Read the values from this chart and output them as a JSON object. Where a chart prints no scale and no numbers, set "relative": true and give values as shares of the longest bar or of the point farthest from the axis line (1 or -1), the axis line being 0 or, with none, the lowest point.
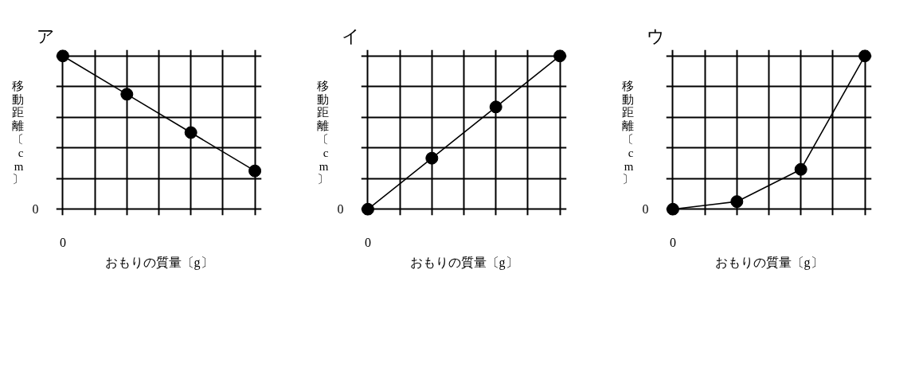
{
  "chart_data": [
    {
      "type": "line",
      "title": "ア",
      "xlabel": "おもりの質量〔g〕",
      "ylabel": "移動距離〔cm〕",
      "relative": true,
      "categories": [
        null,
        null,
        null,
        null
      ],
      "values": [
        1,
        0.75,
        0.5,
        0.25
      ],
      "color": "#000000",
      "marker": "circle",
      "grid": true,
      "annotations": [
        "0",
        "0"
      ]
    },
    {
      "type": "line",
      "title": "イ",
      "xlabel": "おもりの質量〔g〕",
      "ylabel": "移動距離〔cm〕",
      "relative": true,
      "categories": [
        null,
        null,
        null,
        null
      ],
      "values": [
        0,
        0.333,
        0.667,
        1
      ],
      "color": "#000000",
      "marker": "circle",
      "grid": true,
      "annotations": [
        "0",
        "0"
      ]
    },
    {
      "type": "line",
      "title": "ウ",
      "xlabel": "おもりの質量〔g〕",
      "ylabel": "移動距離〔cm〕",
      "relative": true,
      "categories": [
        null,
        null,
        null,
        null
      ],
      "values": [
        0,
        0.05,
        0.26,
        1
      ],
      "color": "#000000",
      "marker": "circle",
      "grid": true,
      "annotations": [
        "0",
        "0"
      ]
    }
  ]
}
